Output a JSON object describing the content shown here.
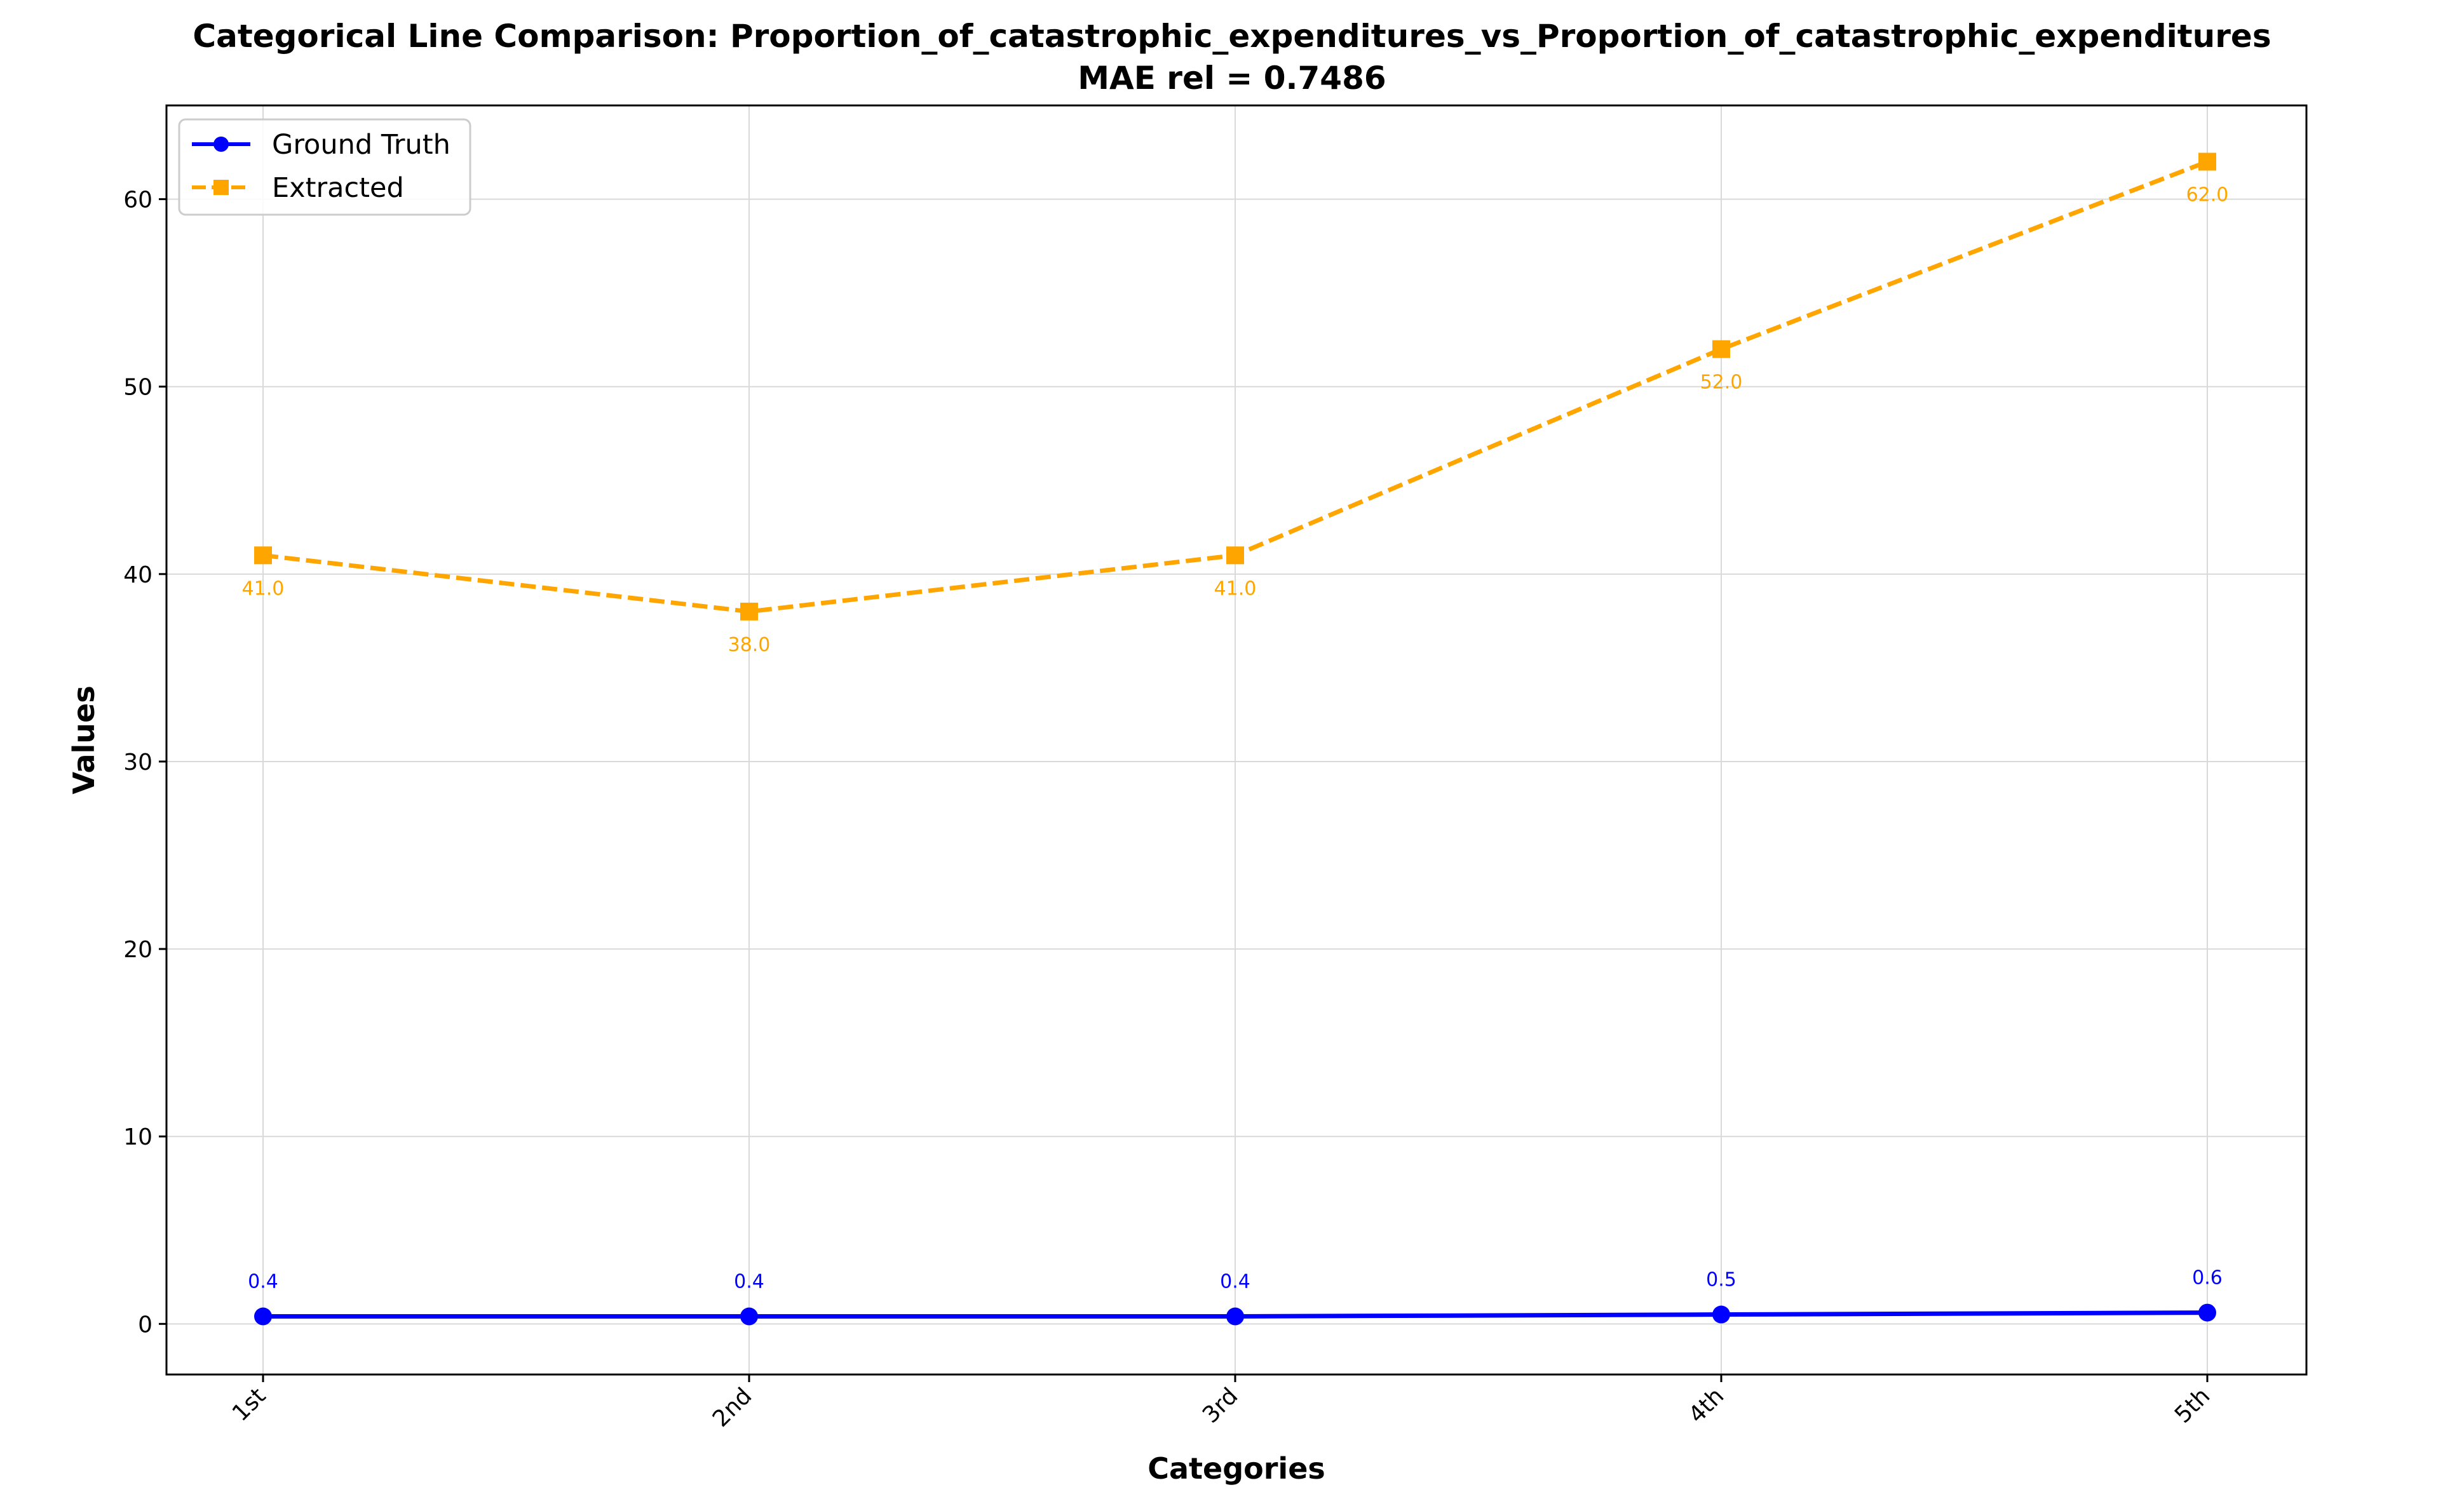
{
  "chart_data": {
    "type": "line",
    "title": "Categorical Line Comparison: Proportion_of_catastrophic_expenditures_vs_Proportion_of_catastrophic_expenditures",
    "subtitle": "MAE rel = 0.7486",
    "xlabel": "Categories",
    "ylabel": "Values",
    "categories": [
      "1st",
      "2nd",
      "3rd",
      "4th",
      "5th"
    ],
    "ylim": [
      -2.7,
      65.0
    ],
    "yticks": [
      0,
      10,
      20,
      30,
      40,
      50,
      60
    ],
    "grid": true,
    "legend_position": "top-left",
    "series": [
      {
        "name": "Ground Truth",
        "values": [
          0.4,
          0.4,
          0.4,
          0.5,
          0.6
        ],
        "labels": [
          "0.4",
          "0.4",
          "0.4",
          "0.5",
          "0.6"
        ],
        "color": "#0000ff",
        "line_style": "solid",
        "marker": "circle"
      },
      {
        "name": "Extracted",
        "values": [
          41.0,
          38.0,
          41.0,
          52.0,
          62.0
        ],
        "labels": [
          "41.0",
          "38.0",
          "41.0",
          "52.0",
          "62.0"
        ],
        "color": "#ffa500",
        "line_style": "dashed",
        "marker": "square"
      }
    ]
  }
}
